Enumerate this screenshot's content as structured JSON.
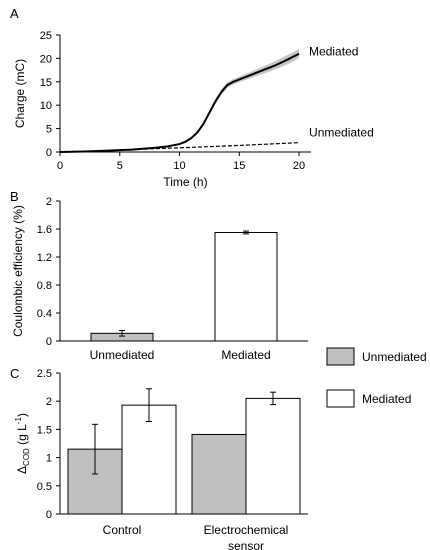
{
  "chart_data": [
    {
      "panel_label": "A",
      "type": "line",
      "xlabel": "Time (h)",
      "ylabel": "Charge (mC)",
      "xlim": [
        0,
        21
      ],
      "ylim": [
        0,
        25
      ],
      "xticks": [
        0,
        5,
        10,
        15,
        20
      ],
      "yticks": [
        0,
        5,
        10,
        15,
        20,
        25
      ],
      "series": [
        {
          "name": "Mediated",
          "style": "solid",
          "color": "#000000",
          "band_color": "#c8c8c8",
          "x": [
            0,
            2,
            4,
            6,
            8,
            9,
            10,
            10.5,
            11,
            11.5,
            12,
            12.5,
            13,
            13.5,
            14,
            14.5,
            15,
            16,
            17,
            18,
            19,
            20
          ],
          "y": [
            0,
            0.1,
            0.3,
            0.5,
            0.9,
            1.2,
            1.7,
            2.2,
            3.0,
            4.2,
            6.0,
            8.4,
            10.8,
            12.8,
            14.3,
            15.0,
            15.5,
            16.5,
            17.5,
            18.5,
            19.7,
            21.0
          ],
          "band": [
            0,
            0,
            0,
            0.1,
            0.1,
            0.15,
            0.2,
            0.2,
            0.25,
            0.3,
            0.4,
            0.5,
            0.6,
            0.6,
            0.6,
            0.6,
            0.6,
            0.7,
            0.8,
            0.9,
            1.0,
            1.0
          ]
        },
        {
          "name": "Unmediated",
          "style": "dashed",
          "color": "#000000",
          "x": [
            0,
            5,
            10,
            15,
            20
          ],
          "y": [
            0,
            0.4,
            0.9,
            1.4,
            2.0
          ]
        }
      ]
    },
    {
      "panel_label": "B",
      "type": "bar",
      "ylabel": "Coulombic efficiency (%)",
      "ylim": [
        0,
        2
      ],
      "yticks": [
        "0",
        "0.4",
        "0.8",
        "1.2",
        "1.6",
        "2"
      ],
      "categories": [
        "Unmediated",
        "Mediated"
      ],
      "values": [
        0.11,
        1.55
      ],
      "errors": [
        0.04,
        0.02
      ],
      "colors": [
        "#c0c0c0",
        "#ffffff"
      ]
    },
    {
      "panel_label": "C",
      "type": "bar",
      "ylabel": "Δ",
      "ylabel_sub": "COD",
      "ylabel_unit": " (g L",
      "ylabel_sup": "-1",
      "ylabel_close": ")",
      "ylim": [
        0,
        2.5
      ],
      "yticks": [
        "0",
        "0.5",
        "1",
        "1.5",
        "2",
        "2.5"
      ],
      "categories": [
        "Control",
        "Electrochemical sensor"
      ],
      "category_lines": [
        [
          "Control"
        ],
        [
          "Electrochemical",
          "sensor"
        ]
      ],
      "series": [
        {
          "name": "Unmediated",
          "color": "#c0c0c0",
          "values": [
            1.15,
            1.41
          ],
          "errors": [
            0.44,
            0.0
          ]
        },
        {
          "name": "Mediated",
          "color": "#ffffff",
          "values": [
            1.93,
            2.05
          ],
          "errors": [
            0.29,
            0.11
          ]
        }
      ],
      "legend": {
        "placement": "right",
        "entries": [
          "Unmediated",
          "Mediated"
        ]
      }
    }
  ]
}
